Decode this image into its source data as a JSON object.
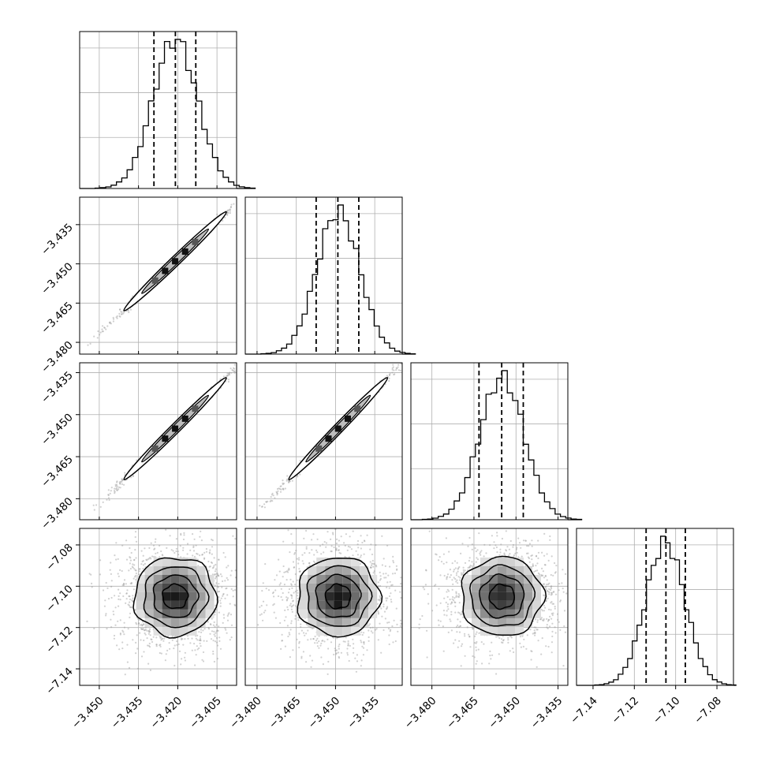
{
  "chart_data": {
    "type": "corner",
    "title": "",
    "dimensions": 4,
    "axes": [
      {
        "ticks": [
          -3.45,
          -3.435,
          -3.42,
          -3.405
        ],
        "tick_labels": [
          "−3.450",
          "−3.435",
          "−3.420",
          "−3.405"
        ],
        "range": [
          -3.4575,
          -3.3975
        ],
        "quantiles": [
          -3.4291,
          -3.4209,
          -3.4131
        ],
        "mean": -3.421,
        "sigma": 0.0085
      },
      {
        "ticks": [
          -3.48,
          -3.465,
          -3.45,
          -3.435
        ],
        "tick_labels": [
          "−3.480",
          "−3.465",
          "−3.450",
          "−3.435"
        ],
        "range": [
          -3.4845,
          -3.4245
        ],
        "quantiles": [
          -3.4574,
          -3.4491,
          -3.4411
        ],
        "mean": -3.449,
        "sigma": 0.0082
      },
      {
        "ticks": [
          -3.48,
          -3.465,
          -3.45,
          -3.435
        ],
        "tick_labels": [
          "−3.480",
          "−3.465",
          "−3.450",
          "−3.435"
        ],
        "range": [
          -3.4875,
          -3.4315
        ],
        "quantiles": [
          -3.4632,
          -3.4551,
          -3.4474
        ],
        "mean": -3.455,
        "sigma": 0.0079
      },
      {
        "ticks": [
          -7.14,
          -7.12,
          -7.1,
          -7.08
        ],
        "tick_labels": [
          "−7.14",
          "−7.12",
          "−7.10",
          "−7.08"
        ],
        "range": [
          -7.148,
          -7.072
        ],
        "quantiles": [
          -7.1143,
          -7.1047,
          -7.0953
        ],
        "mean": -7.105,
        "sigma": 0.0095
      }
    ],
    "histograms": [
      {
        "dim": 0,
        "bins": 30,
        "peak_bin": 14
      },
      {
        "dim": 1,
        "bins": 30,
        "peak_bin": 14
      },
      {
        "dim": 2,
        "bins": 30,
        "peak_bin": 14
      },
      {
        "dim": 3,
        "bins": 30,
        "peak_bin": 13
      }
    ],
    "pairs": [
      {
        "x": 0,
        "y": 1,
        "correlation": 0.996
      },
      {
        "x": 0,
        "y": 2,
        "correlation": 0.996
      },
      {
        "x": 1,
        "y": 2,
        "correlation": 0.996
      },
      {
        "x": 0,
        "y": 3,
        "correlation": 0.0
      },
      {
        "x": 1,
        "y": 3,
        "correlation": 0.0
      },
      {
        "x": 2,
        "y": 3,
        "correlation": 0.0
      }
    ],
    "contour_levels_sigma": [
      0.5,
      1.0,
      1.5,
      2.0
    ],
    "xlabel": "",
    "ylabel": "",
    "grid": true,
    "legend": "none",
    "colors": {
      "line": "#000000",
      "grid": "#b0b0b0",
      "points": "#9a9a9a",
      "fill": "#ffffff"
    }
  }
}
